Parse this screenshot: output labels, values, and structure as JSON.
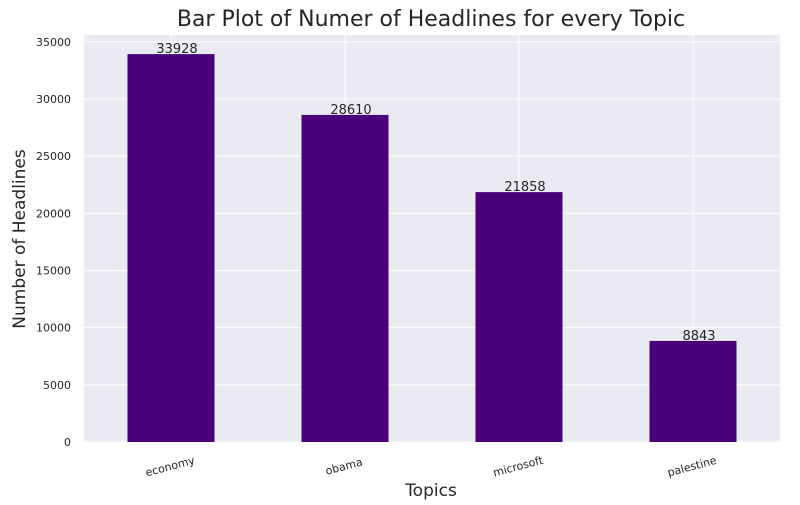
{
  "colors": {
    "bar": "#4b0079",
    "plot_background": "#eaeaf2",
    "grid": "#ffffff"
  },
  "chart_data": {
    "type": "bar",
    "title": "Bar Plot of Numer of Headlines for every Topic",
    "xlabel": "Topics",
    "ylabel": "Number of Headlines",
    "categories": [
      "economy",
      "obama",
      "microsoft",
      "palestine"
    ],
    "values": [
      33928,
      28610,
      21858,
      8843
    ],
    "data_labels": [
      "33928",
      "28610",
      "21858",
      "8843"
    ],
    "yticks": [
      0,
      5000,
      10000,
      15000,
      20000,
      25000,
      30000,
      35000
    ],
    "ytick_labels": [
      "0",
      "5000",
      "10000",
      "15000",
      "20000",
      "25000",
      "30000",
      "35000"
    ],
    "ylim": [
      0,
      35600
    ],
    "grid": true,
    "legend": "none",
    "xtick_rotation": "slight"
  }
}
